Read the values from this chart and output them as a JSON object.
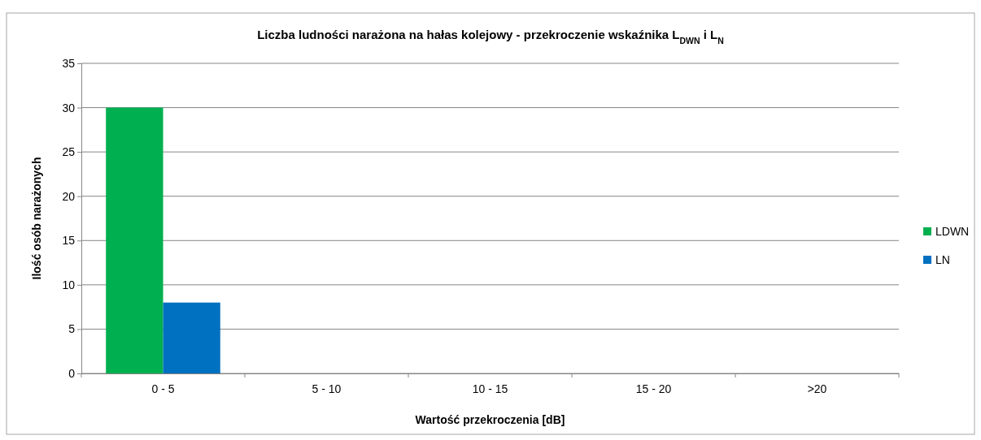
{
  "chart_data": {
    "type": "bar",
    "title": "Liczba ludności narażona na hałas kolejowy - przekroczenie wskaźnika L$_{DWN}$ i L$_{N}$",
    "xlabel": "Wartość przekroczenia [dB]",
    "ylabel": "Ilość osób narażonych",
    "categories": [
      "0 - 5",
      "5 - 10",
      "10 - 15",
      "15 - 20",
      ">20"
    ],
    "series": [
      {
        "name": "LDWN",
        "color": "#00b050",
        "values": [
          30,
          0,
          0,
          0,
          0
        ]
      },
      {
        "name": "LN",
        "color": "#0070c0",
        "values": [
          8,
          0,
          0,
          0,
          0
        ]
      }
    ],
    "ylim": [
      0,
      35
    ],
    "yticks": [
      0,
      5,
      10,
      15,
      20,
      25,
      30,
      35
    ],
    "grid": "y",
    "legend": "right"
  }
}
